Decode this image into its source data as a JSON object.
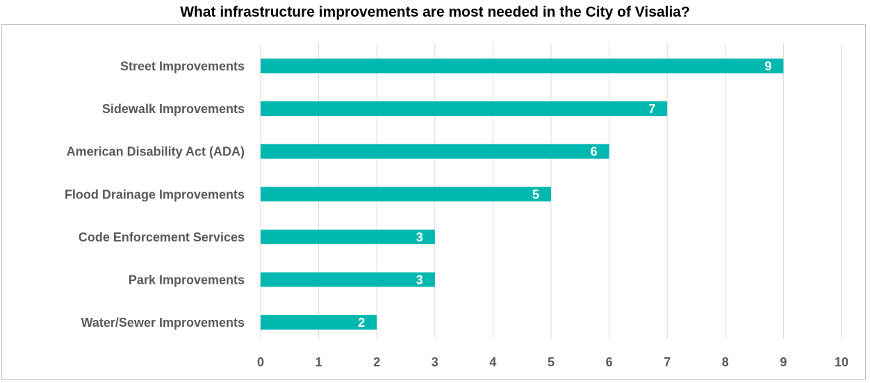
{
  "chart_data": {
    "type": "bar",
    "orientation": "horizontal",
    "title": "What infrastructure improvements are most needed in the City of Visalia?",
    "xlabel": "",
    "ylabel": "",
    "categories": [
      "Street Improvements",
      "Sidewalk Improvements",
      "American Disability Act (ADA)",
      "Flood Drainage Improvements",
      "Code Enforcement Services",
      "Park Improvements",
      "Water/Sewer Improvements"
    ],
    "values": [
      9,
      7,
      6,
      5,
      3,
      3,
      2
    ],
    "xlim": [
      0,
      10
    ],
    "xticks": [
      "0",
      "1",
      "2",
      "3",
      "4",
      "5",
      "6",
      "7",
      "8",
      "9",
      "10"
    ],
    "grid": "vertical",
    "legend": "none",
    "data_labels": true,
    "bar_color": "#00B8B0",
    "data_label_color": "#FFFFFF"
  }
}
